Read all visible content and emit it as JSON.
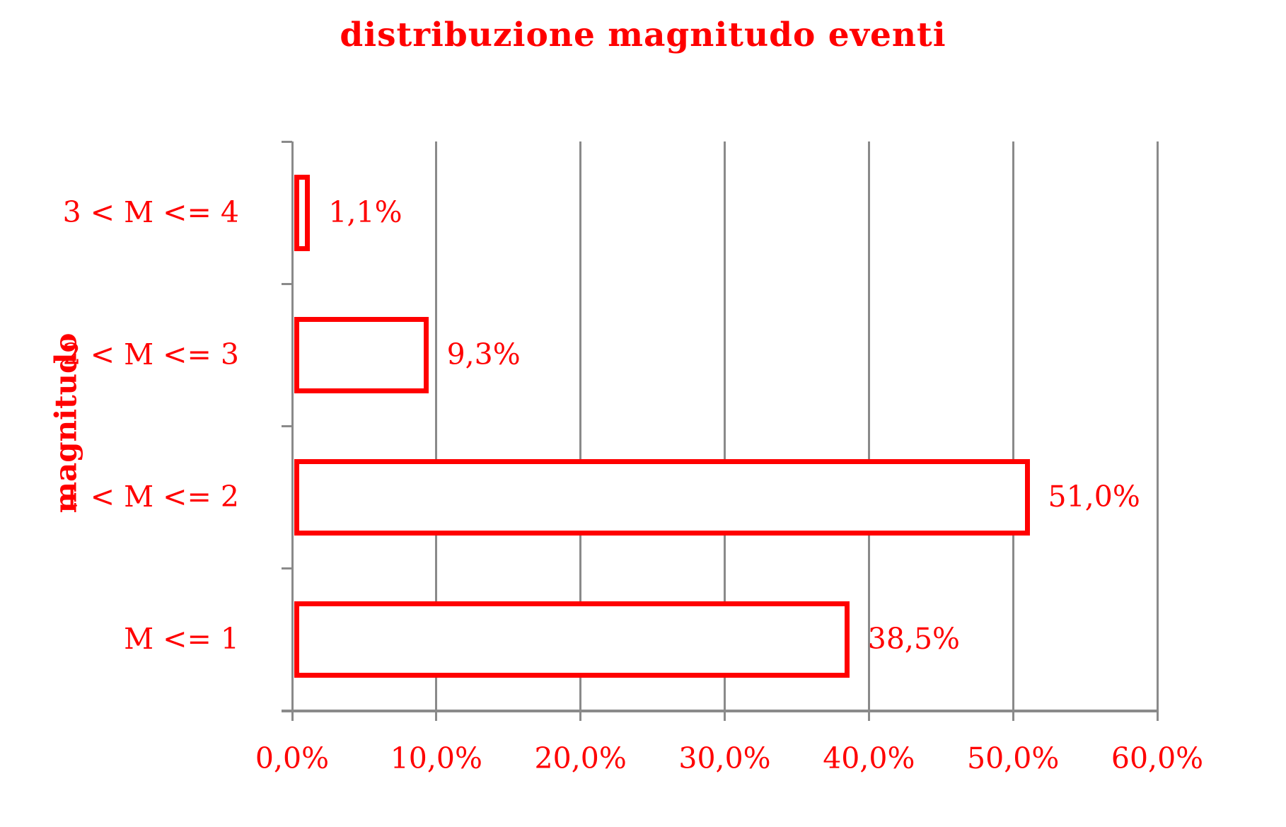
{
  "chart_data": {
    "type": "bar",
    "orientation": "horizontal",
    "title": "distribuzione magnitudo eventi",
    "xlabel": "",
    "ylabel": "magnitudo",
    "categories": [
      "3 < M <= 4",
      "2 < M <= 3",
      "1 < M <= 2",
      "M <= 1"
    ],
    "values": [
      1.1,
      9.3,
      51.0,
      38.5
    ],
    "value_labels": [
      "1,1%",
      "9,3%",
      "51,0%",
      "38,5%"
    ],
    "x_ticks": [
      0,
      10,
      20,
      30,
      40,
      50,
      60
    ],
    "x_tick_labels": [
      "0,0%",
      "10,0%",
      "20,0%",
      "30,0%",
      "40,0%",
      "50,0%",
      "60,0%"
    ],
    "xlim": [
      0,
      60
    ],
    "grid": "vertical-only",
    "legend": "none",
    "colors": {
      "accent": "#ff0000",
      "bar_fill": "#ffffff",
      "bar_border": "#ff0000",
      "grid": "#8a8a8a",
      "background": "#ffffff"
    }
  }
}
